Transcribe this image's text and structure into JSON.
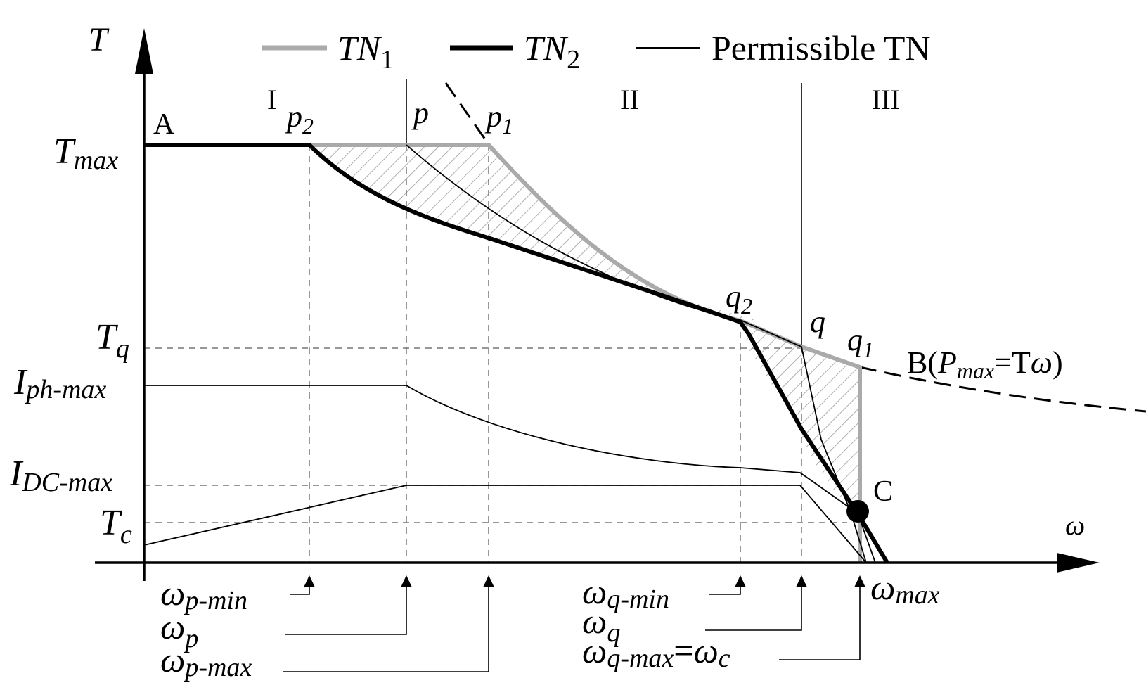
{
  "axes": {
    "y_axis_label": "T",
    "x_axis_label": "ω"
  },
  "legend": {
    "tn1": {
      "base": "TN",
      "sub": "1",
      "color": "#aaaaaa"
    },
    "tn2": {
      "base": "TN",
      "sub": "2",
      "color": "#000000"
    },
    "permissible": {
      "label": "Permissible TN",
      "color": "#000000"
    }
  },
  "regions": {
    "region_1": "I",
    "region_2": "II",
    "region_3": "III"
  },
  "y_labels": {
    "tmax": {
      "base": "T",
      "sub": "max"
    },
    "tq": {
      "base": "T",
      "sub": "q"
    },
    "iph": {
      "base": "I",
      "sub": "ph-max"
    },
    "idc": {
      "base": "I",
      "sub": "DC-max"
    },
    "tc": {
      "base": "T",
      "sub": "c"
    }
  },
  "points": {
    "a": "A",
    "p2": {
      "base": "p",
      "sub": "2"
    },
    "p": "p",
    "p1": {
      "base": "p",
      "sub": "1"
    },
    "q2": {
      "base": "q",
      "sub": "2"
    },
    "q": "q",
    "q1": {
      "base": "q",
      "sub": "1"
    },
    "c": "C",
    "b": {
      "pre": "B(",
      "p": "P",
      "sub": "max",
      "eq": "=T",
      "w": "ω",
      "post": ")"
    }
  },
  "x_labels": {
    "wpmin": {
      "base": "ω",
      "sub": "p-min"
    },
    "wp": {
      "base": "ω",
      "sub": "p"
    },
    "wpmax": {
      "base": "ω",
      "sub": "p-max"
    },
    "wqmin": {
      "base": "ω",
      "sub": "q-min"
    },
    "wq": {
      "base": "ω",
      "sub": "q"
    },
    "wqmax": {
      "base": "ω",
      "sub": "q-max",
      "eq": "=",
      "w2": "ω",
      "sub2": "c"
    },
    "wmax": {
      "base": "ω",
      "sub": "max"
    }
  }
}
